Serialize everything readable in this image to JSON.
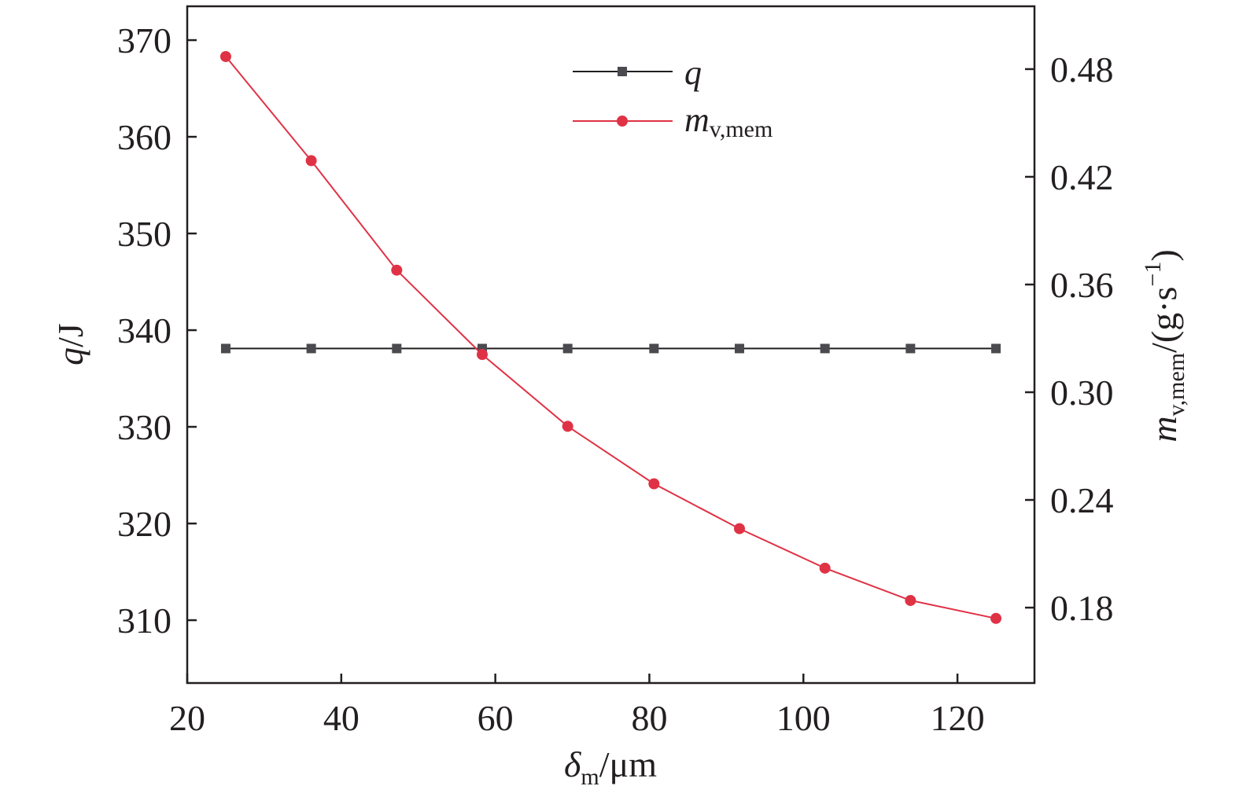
{
  "chart_data": {
    "type": "line",
    "x": [
      25,
      36.1,
      47.2,
      58.3,
      69.4,
      80.6,
      91.7,
      102.8,
      113.9,
      125
    ],
    "series": [
      {
        "name": "q",
        "axis": "left",
        "marker": "square",
        "color": "#4a4a4f",
        "values": [
          338.1,
          338.1,
          338.1,
          338.1,
          338.1,
          338.1,
          338.1,
          338.1,
          338.1,
          338.1
        ]
      },
      {
        "name": "m_v,mem",
        "axis": "right",
        "marker": "circle",
        "color": "#e03245",
        "values": [
          0.487,
          0.429,
          0.368,
          0.321,
          0.281,
          0.249,
          0.224,
          0.202,
          0.184,
          0.174
        ]
      }
    ],
    "xlabel": {
      "main": "δ",
      "sub": "m",
      "unit": "/μm"
    },
    "ylabel_left": {
      "main": "q",
      "unit": "/J"
    },
    "ylabel_right": {
      "main": "m",
      "sub": "v,mem",
      "unit": "/(g·s",
      "sup": "−1",
      "close": ")"
    },
    "xlim": [
      20,
      130
    ],
    "ylim_left": [
      303.5,
      373.5
    ],
    "ylim_right": [
      0.138,
      0.515
    ],
    "xticks": [
      20,
      40,
      60,
      80,
      100,
      120
    ],
    "xtick_labels": [
      "20",
      "40",
      "60",
      "80",
      "100",
      "120"
    ],
    "yticks_left": [
      310,
      320,
      330,
      340,
      350,
      360,
      370
    ],
    "yticks_left_labels": [
      "310",
      "320",
      "330",
      "340",
      "350",
      "360",
      "370"
    ],
    "yticks_right": [
      0.18,
      0.24,
      0.3,
      0.36,
      0.42,
      0.48
    ],
    "yticks_right_labels": [
      "0.18",
      "0.24",
      "0.30",
      "0.36",
      "0.42",
      "0.48"
    ],
    "legend": {
      "placement": "top-center",
      "entries": [
        {
          "main": "q",
          "sub": ""
        },
        {
          "main": "m",
          "sub": "v,mem"
        }
      ]
    },
    "grid": false
  }
}
